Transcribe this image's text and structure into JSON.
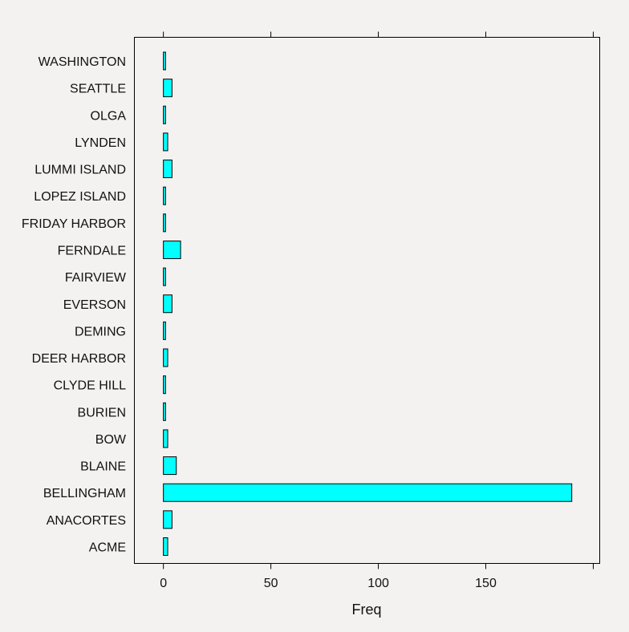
{
  "chart_data": {
    "type": "bar",
    "orientation": "horizontal",
    "xlabel": "Freq",
    "ylabel": "",
    "title": "",
    "xlim": [
      -13.5,
      203
    ],
    "x_ticks": [
      0,
      50,
      100,
      150
    ],
    "x_tick_labels": [
      "0",
      "50",
      "100",
      "150"
    ],
    "top_ticks": true,
    "grid": false,
    "categories": [
      "ACME",
      "ANACORTES",
      "BELLINGHAM",
      "BLAINE",
      "BOW",
      "BURIEN",
      "CLYDE HILL",
      "DEER HARBOR",
      "DEMING",
      "EVERSON",
      "FAIRVIEW",
      "FERNDALE",
      "FRIDAY HARBOR",
      "LOPEZ ISLAND",
      "LUMMI ISLAND",
      "LYNDEN",
      "OLGA",
      "SEATTLE",
      "WASHINGTON"
    ],
    "values": [
      2,
      4,
      190,
      6,
      2,
      1,
      1,
      2,
      1,
      4,
      1,
      8,
      1,
      1,
      4,
      2,
      1,
      4,
      1
    ],
    "bar_color": "#00ffff",
    "bar_stroke": "#000000"
  }
}
